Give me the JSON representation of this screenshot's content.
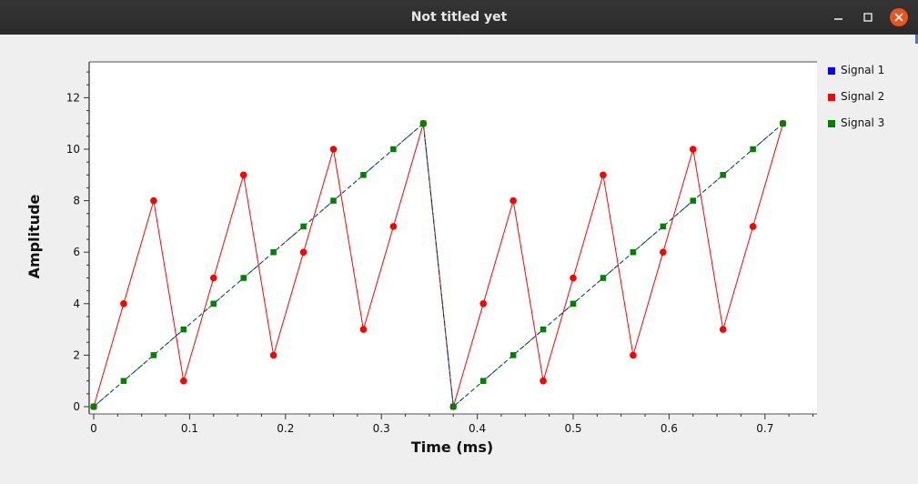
{
  "window": {
    "title": "Not titled yet"
  },
  "colors": {
    "signal1": "#0000ff",
    "signal2": "#ff0000",
    "signal3": "#008000",
    "titlebar": "#2e2e2e",
    "close": "#e9541f"
  },
  "chart_data": {
    "type": "line",
    "title": "",
    "xlabel": "Time (ms)",
    "ylabel": "Amplitude",
    "xlim": [
      0,
      0.75
    ],
    "ylim": [
      0,
      13.3
    ],
    "xticks": [
      0,
      0.1,
      0.2,
      0.3,
      0.4,
      0.5,
      0.6,
      0.7
    ],
    "xtick_labels": [
      "0",
      "0.1",
      "0.2",
      "0.3",
      "0.4",
      "0.5",
      "0.6",
      "0.7"
    ],
    "yticks": [
      0,
      2,
      4,
      6,
      8,
      10,
      12
    ],
    "ytick_labels": [
      "0",
      "2",
      "4",
      "6",
      "8",
      "10",
      "12"
    ],
    "grid": false,
    "legend_position": "right",
    "x": [
      0,
      0.03125,
      0.0625,
      0.09375,
      0.125,
      0.15625,
      0.1875,
      0.21875,
      0.25,
      0.28125,
      0.3125,
      0.34375,
      0.375,
      0.40625,
      0.4375,
      0.46875,
      0.5,
      0.53125,
      0.5625,
      0.59375,
      0.625,
      0.65625,
      0.6875,
      0.71875
    ],
    "series": [
      {
        "name": "Signal 1",
        "color": "#0000ff",
        "marker": "square",
        "line": "dashed",
        "values": [
          0,
          1,
          2,
          3,
          4,
          5,
          6,
          7,
          8,
          9,
          10,
          11,
          0,
          1,
          2,
          3,
          4,
          5,
          6,
          7,
          8,
          9,
          10,
          11
        ]
      },
      {
        "name": "Signal 2",
        "color": "#ff0000",
        "marker": "circle",
        "line": "solid",
        "values": [
          0,
          4,
          8,
          1,
          5,
          9,
          2,
          6,
          10,
          3,
          7,
          11,
          0,
          4,
          8,
          1,
          5,
          9,
          2,
          6,
          10,
          3,
          7,
          11
        ]
      },
      {
        "name": "Signal 3",
        "color": "#008000",
        "marker": "square",
        "line": "dashed",
        "values": [
          0,
          1,
          2,
          3,
          4,
          5,
          6,
          7,
          8,
          9,
          10,
          11,
          0,
          1,
          2,
          3,
          4,
          5,
          6,
          7,
          8,
          9,
          10,
          11
        ]
      }
    ]
  }
}
